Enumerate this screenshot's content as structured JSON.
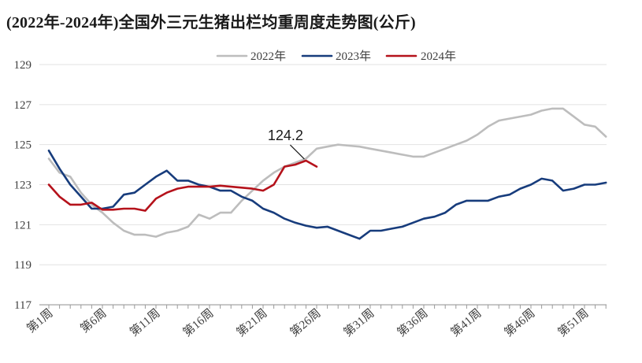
{
  "chart_data": {
    "type": "line",
    "title": "(2022年-2024年)全国外三元生猪出栏均重周度走势图(公斤)",
    "xlabel": "",
    "ylabel": "",
    "ylim": [
      117,
      129
    ],
    "yticks": [
      117,
      119,
      121,
      123,
      125,
      127,
      129
    ],
    "xlim": [
      1,
      53
    ],
    "x_tick_labels": [
      {
        "x": 1,
        "label": "第1周"
      },
      {
        "x": 6,
        "label": "第6周"
      },
      {
        "x": 11,
        "label": "第11周"
      },
      {
        "x": 16,
        "label": "第16周"
      },
      {
        "x": 21,
        "label": "第21周"
      },
      {
        "x": 26,
        "label": "第26周"
      },
      {
        "x": 31,
        "label": "第31周"
      },
      {
        "x": 36,
        "label": "第36周"
      },
      {
        "x": 41,
        "label": "第41周"
      },
      {
        "x": 46,
        "label": "第46周"
      },
      {
        "x": 51,
        "label": "第51周"
      }
    ],
    "grid": true,
    "legend": "top-center",
    "series": [
      {
        "name": "2022年",
        "color": "#bdbdbd",
        "x_start": 1,
        "values": [
          124.3,
          123.6,
          123.4,
          122.6,
          122.0,
          121.6,
          121.1,
          120.7,
          120.5,
          120.5,
          120.4,
          120.6,
          120.7,
          120.9,
          121.5,
          121.3,
          121.6,
          121.6,
          122.2,
          122.7,
          123.2,
          123.6,
          123.9,
          124.1,
          124.3,
          124.8,
          124.9,
          125.0,
          124.95,
          124.9,
          124.8,
          124.7,
          124.6,
          124.5,
          124.4,
          124.4,
          124.6,
          124.8,
          125.0,
          125.2,
          125.5,
          125.9,
          126.2,
          126.3,
          126.4,
          126.5,
          126.7,
          126.8,
          126.8,
          126.4,
          126.0,
          125.9,
          125.4
        ]
      },
      {
        "name": "2023年",
        "color": "#173c7c",
        "x_start": 1,
        "values": [
          124.7,
          123.8,
          123.0,
          122.4,
          121.8,
          121.8,
          121.9,
          122.5,
          122.6,
          123.0,
          123.4,
          123.7,
          123.2,
          123.2,
          123.0,
          122.9,
          122.7,
          122.7,
          122.4,
          122.2,
          121.8,
          121.6,
          121.3,
          121.1,
          120.95,
          120.85,
          120.9,
          120.7,
          120.5,
          120.3,
          120.7,
          120.7,
          120.8,
          120.9,
          121.1,
          121.3,
          121.4,
          121.6,
          122.0,
          122.2,
          122.2,
          122.2,
          122.4,
          122.5,
          122.8,
          123.0,
          123.3,
          123.2,
          122.7,
          122.8,
          123.0,
          123.0,
          123.1
        ]
      },
      {
        "name": "2024年",
        "color": "#b5121b",
        "x_start": 1,
        "values": [
          123.0,
          122.4,
          122.0,
          122.0,
          122.1,
          121.75,
          121.75,
          121.8,
          121.8,
          121.7,
          122.3,
          122.6,
          122.8,
          122.9,
          122.9,
          122.9,
          122.95,
          122.9,
          122.85,
          122.8,
          122.7,
          123.0,
          123.9,
          124.0,
          124.2,
          123.9
        ]
      }
    ],
    "annotations": [
      {
        "text": "124.2",
        "x": 25,
        "y": 124.2
      }
    ]
  }
}
